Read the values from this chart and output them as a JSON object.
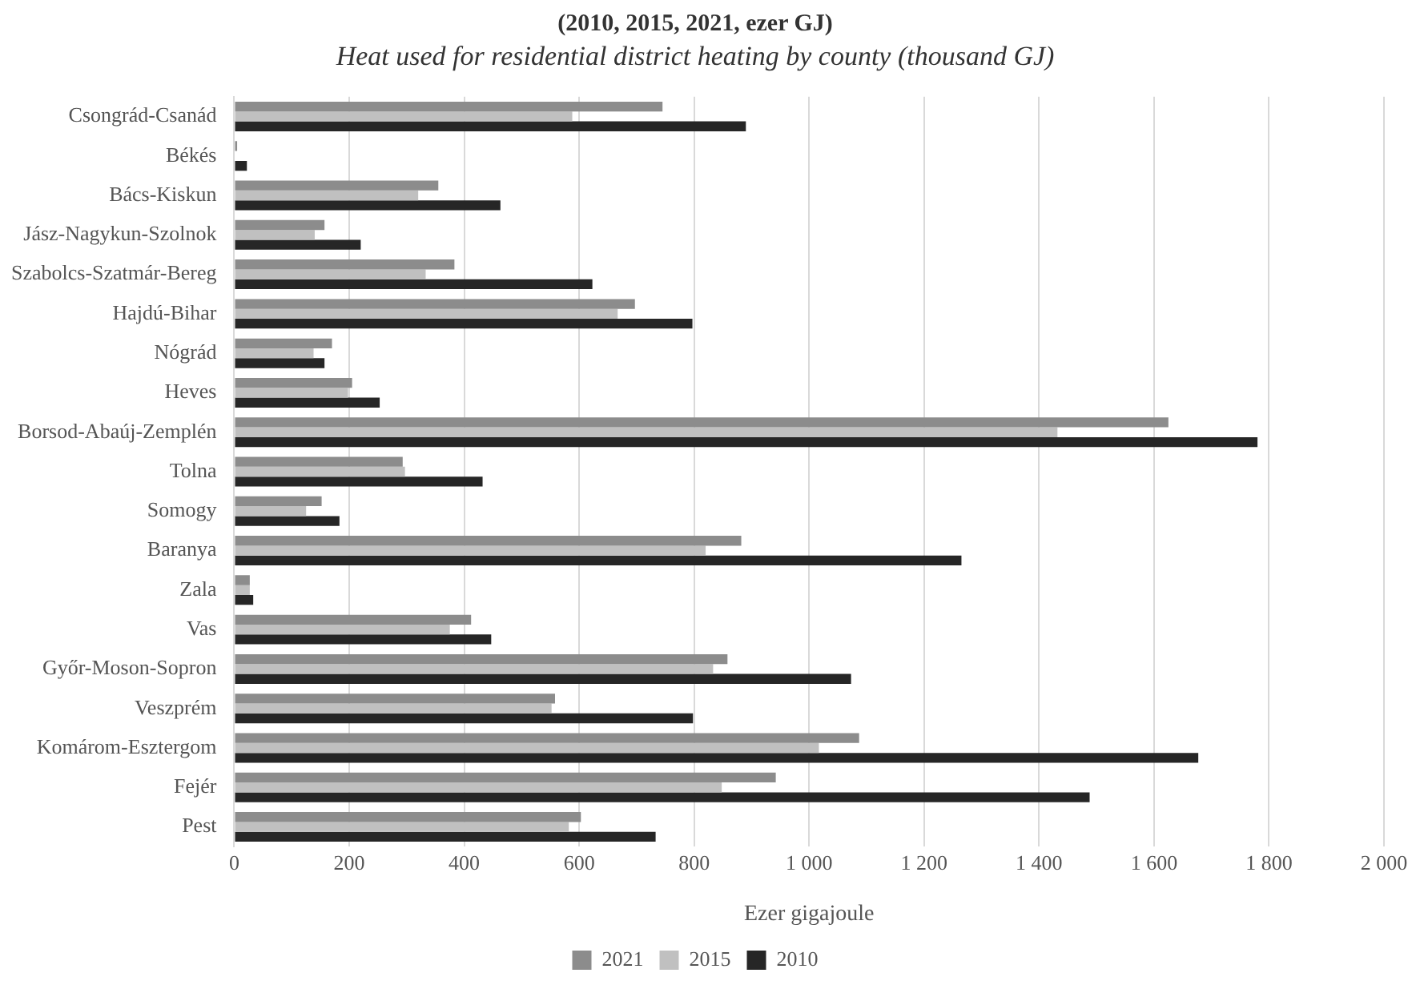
{
  "chart_data": {
    "type": "bar",
    "orientation": "horizontal",
    "title": "(2010, 2015, 2021, ezer GJ)",
    "subtitle": "Heat used for residential district heating by county (thousand GJ)",
    "xlabel": "Ezer gigajoule",
    "categories": [
      "Csongrád-Csanád",
      "Békés",
      "Bács-Kiskun",
      "Jász-Nagykun-Szolnok",
      "Szabolcs-Szatmár-Bereg",
      "Hajdú-Bihar",
      "Nógrád",
      "Heves",
      "Borsod-Abaúj-Zemplén",
      "Tolna",
      "Somogy",
      "Baranya",
      "Zala",
      "Vas",
      "Győr-Moson-Sopron",
      "Veszprém",
      "Komárom-Esztergom",
      "Fejér",
      "Pest"
    ],
    "series": [
      {
        "name": "2021",
        "color": "#8c8c8c",
        "values": [
          745,
          5,
          355,
          157,
          383,
          697,
          170,
          205,
          1625,
          293,
          152,
          882,
          27,
          412,
          858,
          558,
          1087,
          942,
          603
        ]
      },
      {
        "name": "2015",
        "color": "#c0c0c0",
        "values": [
          588,
          null,
          320,
          140,
          333,
          667,
          138,
          198,
          1432,
          297,
          125,
          820,
          27,
          375,
          833,
          552,
          1017,
          848,
          582
        ]
      },
      {
        "name": "2010",
        "color": "#262626",
        "values": [
          890,
          22,
          463,
          220,
          623,
          797,
          157,
          253,
          1780,
          432,
          183,
          1265,
          33,
          447,
          1073,
          798,
          1677,
          1488,
          733
        ]
      }
    ],
    "xlim": [
      0,
      2000
    ],
    "xticks": [
      0,
      {
        "value": 200,
        "label": "200"
      },
      {
        "value": 400,
        "label": "400"
      },
      {
        "value": 600,
        "label": "600"
      },
      {
        "value": 800,
        "label": "800"
      },
      {
        "value": 1000,
        "label": "1 000"
      },
      {
        "value": 1200,
        "label": "1 200"
      },
      {
        "value": 1400,
        "label": "1 400"
      },
      {
        "value": 1600,
        "label": "1 600"
      },
      {
        "value": 1800,
        "label": "1 800"
      },
      {
        "value": 2000,
        "label": "2 000"
      }
    ],
    "grid": "x",
    "legend": "bottom"
  }
}
